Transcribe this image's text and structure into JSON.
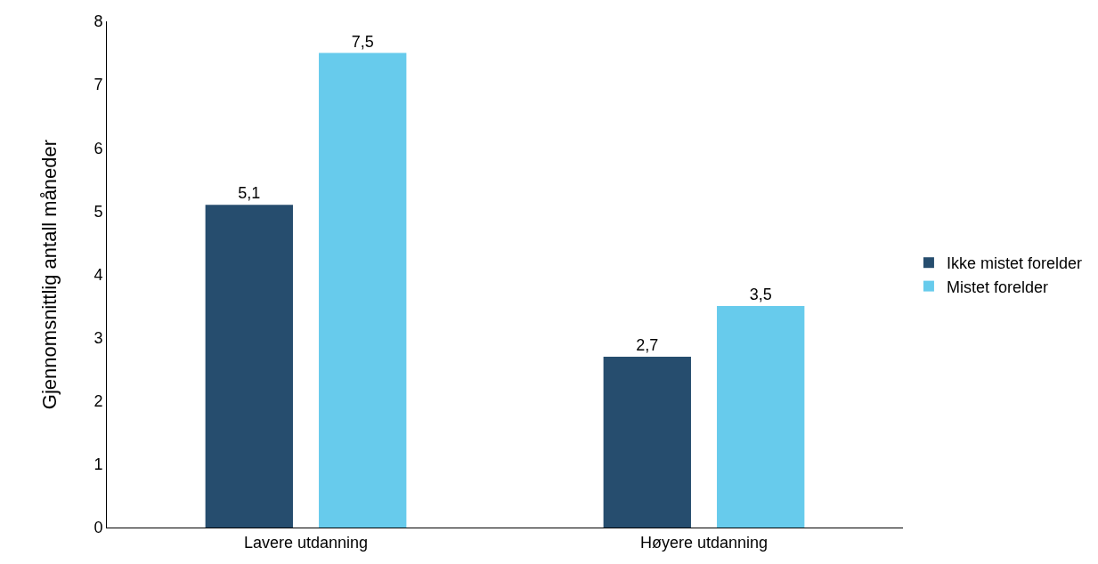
{
  "chart_data": {
    "type": "bar",
    "ylabel": "Gjennomsnittlig antall måneder",
    "categories": [
      "Lavere utdanning",
      "Høyere utdanning"
    ],
    "series": [
      {
        "name": "Ikke mistet forelder",
        "color": "#264d6e",
        "values": [
          5.1,
          2.7
        ],
        "value_labels": [
          "5,1",
          "2,7"
        ]
      },
      {
        "name": "Mistet forelder",
        "color": "#67cbec",
        "values": [
          7.5,
          3.5
        ],
        "value_labels": [
          "7,5",
          "3,5"
        ]
      }
    ],
    "ylim": [
      0,
      8
    ],
    "yticks": [
      0,
      1,
      2,
      3,
      4,
      5,
      6,
      7,
      8
    ],
    "legend": "right"
  }
}
